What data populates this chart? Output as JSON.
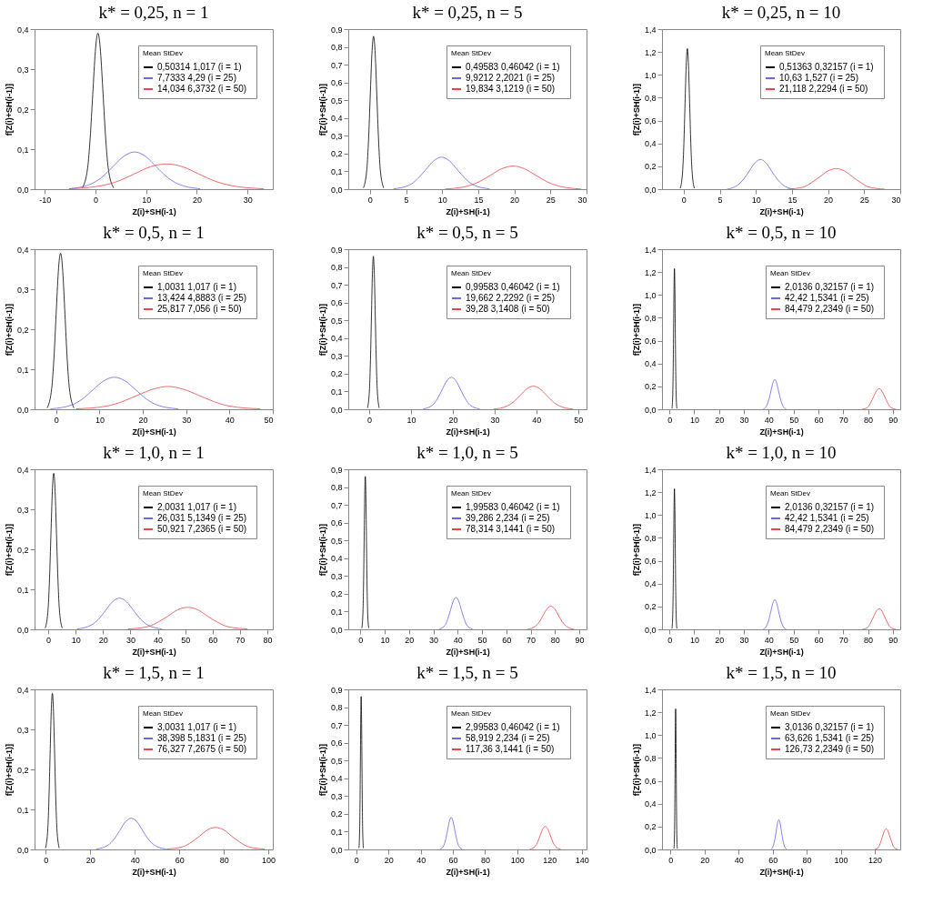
{
  "chart_data": [
    {
      "type": "line",
      "title": "k* = 0,25, n = 1",
      "xlabel": "Z(i)+SH(i-1)",
      "ylabel": "f[Z(i)+SH(i-1)]",
      "legend": "top right",
      "legend_title": "Mean StDev",
      "xlim": [
        -12,
        35
      ],
      "xticks": [
        -10,
        0,
        10,
        20,
        30
      ],
      "ylim": [
        0,
        0.4
      ],
      "yticks": [
        {
          "value": 0,
          "label": "0,0"
        },
        {
          "value": 0.1,
          "label": "0,1"
        },
        {
          "value": 0.2,
          "label": "0,2"
        },
        {
          "value": 0.3,
          "label": "0,3"
        },
        {
          "value": 0.4,
          "label": "0,4"
        }
      ],
      "series": [
        {
          "name": "0,50314  1,017  (i = 1)",
          "color": "#000000",
          "x": [
            -2.55,
            -1.53,
            -1.03,
            -0.52,
            -0.01,
            0.25,
            0.5,
            0.75,
            1.01,
            1.52,
            2.03,
            2.53,
            3.55
          ],
          "values": [
            0.004,
            0.053,
            0.127,
            0.237,
            0.344,
            0.378,
            0.39,
            0.378,
            0.344,
            0.237,
            0.127,
            0.053,
            0.004
          ]
        },
        {
          "name": "7,7333  4,29  (i = 25)",
          "color": "#6666ee",
          "x": [
            -5.14,
            -0.85,
            1.3,
            3.44,
            5.59,
            7.73,
            9.88,
            12.02,
            14.17,
            16.31,
            20.6
          ],
          "values": [
            0.001,
            0.013,
            0.03,
            0.056,
            0.082,
            0.093,
            0.082,
            0.056,
            0.03,
            0.013,
            0.001
          ]
        },
        {
          "name": "14,034  6,3732  (i = 50)",
          "color": "#ee4444",
          "x": [
            -5.08,
            1.29,
            4.48,
            7.66,
            10.85,
            14.03,
            17.22,
            20.4,
            23.59,
            26.77,
            33.14
          ],
          "values": [
            0.001,
            0.009,
            0.02,
            0.038,
            0.056,
            0.063,
            0.056,
            0.038,
            0.02,
            0.009,
            0.001
          ]
        }
      ]
    },
    {
      "type": "line",
      "title": "k* = 0,25, n = 5",
      "xlabel": "Z(i)+SH(i-1)",
      "ylabel": "f[Z(i)+SH(i-1)]",
      "legend": "top right",
      "legend_title": "Mean StDev",
      "xlim": [
        -3,
        30
      ],
      "xticks": [
        0,
        5,
        10,
        15,
        20,
        25,
        30
      ],
      "ylim": [
        0,
        0.9
      ],
      "yticks": [
        {
          "value": 0,
          "label": "0,0"
        },
        {
          "value": 0.1,
          "label": "0,1"
        },
        {
          "value": 0.2,
          "label": "0,2"
        },
        {
          "value": 0.3,
          "label": "0,3"
        },
        {
          "value": 0.4,
          "label": "0,4"
        },
        {
          "value": 0.5,
          "label": "0,5"
        },
        {
          "value": 0.6,
          "label": "0,6"
        },
        {
          "value": 0.7,
          "label": "0,7"
        },
        {
          "value": 0.8,
          "label": "0,8"
        },
        {
          "value": 0.9,
          "label": "0,9"
        }
      ],
      "series": [
        {
          "name": "0,49583  0,46042  (i = 1)",
          "color": "#000000",
          "x": [
            -0.88,
            -0.42,
            -0.19,
            0.04,
            0.27,
            0.5,
            0.73,
            0.96,
            1.19,
            1.42,
            1.88
          ],
          "values": [
            0.009,
            0.116,
            0.28,
            0.522,
            0.759,
            0.86,
            0.759,
            0.522,
            0.28,
            0.116,
            0.009
          ]
        },
        {
          "name": "9,9212  2,2021  (i = 25)",
          "color": "#6666ee",
          "x": [
            3.32,
            5.52,
            6.62,
            7.72,
            8.82,
            9.92,
            11.02,
            12.12,
            13.22,
            14.32,
            16.52
          ],
          "values": [
            0.002,
            0.024,
            0.059,
            0.109,
            0.159,
            0.18,
            0.159,
            0.109,
            0.059,
            0.024,
            0.002
          ]
        },
        {
          "name": "19,834  3,1219  (i = 50)",
          "color": "#ee4444",
          "x": [
            10.47,
            13.59,
            15.15,
            16.71,
            18.27,
            19.83,
            21.39,
            22.95,
            24.51,
            26.07,
            29.19
          ],
          "values": [
            0.001,
            0.018,
            0.042,
            0.079,
            0.115,
            0.13,
            0.115,
            0.079,
            0.042,
            0.018,
            0.001
          ]
        }
      ]
    },
    {
      "type": "line",
      "title": "k* = 0,25, n = 10",
      "xlabel": "Z(i)+SH(i-1)",
      "ylabel": "f[Z(i)+SH(i-1)]",
      "legend": "top right",
      "legend_title": "Mean StDev",
      "xlim": [
        -3,
        30
      ],
      "xticks": [
        0,
        5,
        10,
        15,
        20,
        25,
        30
      ],
      "ylim": [
        0,
        1.4
      ],
      "yticks": [
        {
          "value": 0,
          "label": "0,0"
        },
        {
          "value": 0.2,
          "label": "0,2"
        },
        {
          "value": 0.4,
          "label": "0,4"
        },
        {
          "value": 0.6,
          "label": "0,6"
        },
        {
          "value": 0.8,
          "label": "0,8"
        },
        {
          "value": 1,
          "label": "1,0"
        },
        {
          "value": 1.2,
          "label": "1,2"
        },
        {
          "value": 1.4,
          "label": "1,4"
        }
      ],
      "series": [
        {
          "name": "0,51363  0,32157  (i = 1)",
          "color": "#000000",
          "x": [
            -0.45,
            -0.13,
            0.03,
            0.19,
            0.35,
            0.51,
            0.67,
            0.83,
            0.99,
            1.15,
            1.47
          ],
          "values": [
            0.01,
            0.17,
            0.4,
            0.75,
            1.08,
            1.23,
            1.08,
            0.75,
            0.4,
            0.17,
            0.01
          ]
        },
        {
          "name": "10,63  1,527  (i = 25)",
          "color": "#6666ee",
          "x": [
            6.04,
            7.57,
            8.34,
            9.1,
            9.87,
            10.63,
            11.4,
            12.16,
            12.93,
            13.69,
            15.22
          ],
          "values": [
            0,
            0.04,
            0.09,
            0.16,
            0.23,
            0.26,
            0.23,
            0.16,
            0.09,
            0.04,
            0
          ]
        },
        {
          "name": "21,118  2,2294  (i = 50)",
          "color": "#ee4444",
          "x": [
            14.43,
            16.66,
            17.78,
            18.89,
            20.01,
            21.12,
            22.24,
            23.35,
            24.47,
            25.58,
            27.81
          ],
          "values": [
            0,
            0.02,
            0.06,
            0.11,
            0.16,
            0.18,
            0.16,
            0.11,
            0.06,
            0.02,
            0
          ]
        }
      ]
    },
    {
      "type": "line",
      "title": "k* = 0,5, n = 1",
      "xlabel": "Z(i)+SH(i-1)",
      "ylabel": "f[Z(i)+SH(i-1)]",
      "legend": "top right",
      "legend_title": "Mean StDev",
      "xlim": [
        -5,
        50
      ],
      "xticks": [
        0,
        10,
        20,
        30,
        40,
        50
      ],
      "ylim": [
        0,
        0.4
      ],
      "yticks": [
        {
          "value": 0,
          "label": "0,0"
        },
        {
          "value": 0.1,
          "label": "0,1"
        },
        {
          "value": 0.2,
          "label": "0,2"
        },
        {
          "value": 0.3,
          "label": "0,3"
        },
        {
          "value": 0.4,
          "label": "0,4"
        }
      ],
      "series": [
        {
          "name": "1,0031  1,017  (i = 1)",
          "color": "#000000",
          "x": [
            -2.05,
            -1.03,
            -0.53,
            -0.02,
            0.49,
            0.75,
            1,
            1.25,
            1.51,
            2.02,
            2.53,
            3.03,
            4.05
          ],
          "values": [
            0.004,
            0.053,
            0.127,
            0.237,
            0.344,
            0.378,
            0.39,
            0.378,
            0.344,
            0.237,
            0.127,
            0.053,
            0.004
          ]
        },
        {
          "name": "13,424  4,8883  (i = 25)",
          "color": "#6666ee",
          "x": [
            -1.25,
            3.64,
            6.09,
            8.53,
            10.98,
            13.42,
            15.87,
            18.31,
            20.76,
            23.2,
            28.09
          ],
          "values": [
            0.001,
            0.011,
            0.026,
            0.049,
            0.071,
            0.08,
            0.071,
            0.049,
            0.026,
            0.011,
            0.001
          ]
        },
        {
          "name": "25,817  7,056  (i = 50)",
          "color": "#ee4444",
          "x": [
            4.64,
            11.7,
            15.23,
            18.76,
            22.29,
            25.82,
            29.35,
            32.88,
            36.41,
            39.94,
            47
          ],
          "values": [
            0.001,
            0.008,
            0.019,
            0.035,
            0.05,
            0.057,
            0.05,
            0.035,
            0.019,
            0.008,
            0.001
          ]
        }
      ]
    },
    {
      "type": "line",
      "title": "k* = 0,5, n = 5",
      "xlabel": "Z(i)+SH(i-1)",
      "ylabel": "f[Z(i)+SH(i-1)]",
      "legend": "top right",
      "legend_title": "Mean StDev",
      "xlim": [
        -5,
        52
      ],
      "xticks": [
        0,
        10,
        20,
        30,
        40,
        50
      ],
      "ylim": [
        0,
        0.9
      ],
      "yticks": [
        {
          "value": 0,
          "label": "0,0"
        },
        {
          "value": 0.1,
          "label": "0,1"
        },
        {
          "value": 0.2,
          "label": "0,2"
        },
        {
          "value": 0.3,
          "label": "0,3"
        },
        {
          "value": 0.4,
          "label": "0,4"
        },
        {
          "value": 0.5,
          "label": "0,5"
        },
        {
          "value": 0.6,
          "label": "0,6"
        },
        {
          "value": 0.7,
          "label": "0,7"
        },
        {
          "value": 0.8,
          "label": "0,8"
        },
        {
          "value": 0.9,
          "label": "0,9"
        }
      ],
      "series": [
        {
          "name": "0,99583  0,46042  (i = 1)",
          "color": "#000000",
          "x": [
            -0.38,
            0.08,
            0.31,
            0.54,
            0.77,
            1,
            1.23,
            1.46,
            1.69,
            1.92,
            2.38
          ],
          "values": [
            0.009,
            0.116,
            0.28,
            0.522,
            0.759,
            0.86,
            0.759,
            0.522,
            0.28,
            0.116,
            0.009
          ]
        },
        {
          "name": "19,662  2,2292  (i = 25)",
          "color": "#6666ee",
          "x": [
            12.97,
            15.2,
            16.32,
            17.43,
            18.55,
            19.66,
            20.78,
            21.89,
            23.01,
            24.12,
            26.35
          ],
          "values": [
            0.002,
            0.024,
            0.059,
            0.109,
            0.159,
            0.18,
            0.159,
            0.109,
            0.059,
            0.024,
            0.002
          ]
        },
        {
          "name": "39,28  3,1408  (i = 50)",
          "color": "#ee4444",
          "x": [
            29.86,
            33,
            34.57,
            36.14,
            37.71,
            39.28,
            40.85,
            42.42,
            43.99,
            45.56,
            48.7
          ],
          "values": [
            0.001,
            0.018,
            0.042,
            0.079,
            0.115,
            0.13,
            0.115,
            0.079,
            0.042,
            0.018,
            0.001
          ]
        }
      ]
    },
    {
      "type": "line",
      "title": "k* = 0,5, n = 10",
      "xlabel": "Z(i)+SH(i-1)",
      "ylabel": "f[Z(i)+SH(i-1)]",
      "legend": "top right",
      "legend_title": "Mean StDev",
      "xlim": [
        -3,
        93
      ],
      "xticks": [
        0,
        10,
        20,
        30,
        40,
        50,
        60,
        70,
        80,
        90
      ],
      "ylim": [
        0,
        1.4
      ],
      "yticks": [
        {
          "value": 0,
          "label": "0,0"
        },
        {
          "value": 0.2,
          "label": "0,2"
        },
        {
          "value": 0.4,
          "label": "0,4"
        },
        {
          "value": 0.6,
          "label": "0,6"
        },
        {
          "value": 0.8,
          "label": "0,8"
        },
        {
          "value": 1,
          "label": "1,0"
        },
        {
          "value": 1.2,
          "label": "1,2"
        },
        {
          "value": 1.4,
          "label": "1,4"
        }
      ],
      "series": [
        {
          "name": "2,0136  0,32157  (i = 1)",
          "color": "#000000",
          "x": [
            1.05,
            1.37,
            1.53,
            1.69,
            1.85,
            2.01,
            2.17,
            2.33,
            2.49,
            2.65,
            2.97
          ],
          "values": [
            0.01,
            0.17,
            0.4,
            0.75,
            1.08,
            1.23,
            1.08,
            0.75,
            0.4,
            0.17,
            0.01
          ]
        },
        {
          "name": "42,42  1,5341  (i = 25)",
          "color": "#6666ee",
          "x": [
            37.83,
            39.36,
            40.13,
            40.89,
            41.66,
            42.42,
            43.19,
            43.95,
            44.72,
            45.48,
            47.01
          ],
          "values": [
            0,
            0.04,
            0.09,
            0.16,
            0.23,
            0.26,
            0.23,
            0.16,
            0.09,
            0.04,
            0
          ]
        },
        {
          "name": "84,479  2,2349  (i = 50)",
          "color": "#ee4444",
          "x": [
            77.79,
            80.02,
            81.14,
            82.25,
            83.37,
            84.48,
            85.6,
            86.71,
            87.83,
            88.94,
            91.17
          ],
          "values": [
            0,
            0.02,
            0.06,
            0.11,
            0.16,
            0.18,
            0.16,
            0.11,
            0.06,
            0.02,
            0
          ]
        }
      ]
    },
    {
      "type": "line",
      "title": "k* = 1,0, n = 1",
      "xlabel": "Z(i)+SH(i-1)",
      "ylabel": "f[Z(i)+SH(i-1)]",
      "legend": "top right",
      "legend_title": "Mean StDev",
      "xlim": [
        -5,
        82
      ],
      "xticks": [
        0,
        10,
        20,
        30,
        40,
        50,
        60,
        70,
        80
      ],
      "ylim": [
        0,
        0.4
      ],
      "yticks": [
        {
          "value": 0,
          "label": "0,0"
        },
        {
          "value": 0.1,
          "label": "0,1"
        },
        {
          "value": 0.2,
          "label": "0,2"
        },
        {
          "value": 0.3,
          "label": "0,3"
        },
        {
          "value": 0.4,
          "label": "0,4"
        }
      ],
      "series": [
        {
          "name": "2,0031  1,017  (i = 1)",
          "color": "#000000",
          "x": [
            -1.05,
            -0.03,
            0.47,
            0.98,
            1.49,
            1.75,
            2,
            2.25,
            2.51,
            3.02,
            3.53,
            4.03,
            5.05
          ],
          "values": [
            0.004,
            0.053,
            0.127,
            0.237,
            0.344,
            0.378,
            0.39,
            0.378,
            0.344,
            0.237,
            0.127,
            0.053,
            0.004
          ]
        },
        {
          "name": "26,031  5,1349  (i = 25)",
          "color": "#6666ee",
          "x": [
            10.64,
            15.77,
            18.33,
            20.9,
            23.46,
            26.03,
            28.6,
            31.16,
            33.73,
            36.29,
            41.42
          ],
          "values": [
            0.001,
            0.011,
            0.025,
            0.047,
            0.069,
            0.078,
            0.069,
            0.047,
            0.025,
            0.011,
            0.001
          ]
        },
        {
          "name": "50,921  7,2365  (i = 50)",
          "color": "#ee4444",
          "x": [
            29.2,
            36.44,
            40.06,
            43.68,
            47.3,
            50.92,
            54.54,
            58.16,
            61.78,
            65.4,
            72.64
          ],
          "values": [
            0.001,
            0.007,
            0.018,
            0.033,
            0.049,
            0.055,
            0.049,
            0.033,
            0.018,
            0.007,
            0.001
          ]
        }
      ]
    },
    {
      "type": "line",
      "title": "k* = 1,0, n = 5",
      "xlabel": "Z(i)+SH(i-1)",
      "ylabel": "f[Z(i)+SH(i-1)]",
      "legend": "top right",
      "legend_title": "Mean StDev",
      "xlim": [
        -5,
        93
      ],
      "xticks": [
        0,
        10,
        20,
        30,
        40,
        50,
        60,
        70,
        80,
        90
      ],
      "ylim": [
        0,
        0.9
      ],
      "yticks": [
        {
          "value": 0,
          "label": "0,0"
        },
        {
          "value": 0.1,
          "label": "0,1"
        },
        {
          "value": 0.2,
          "label": "0,2"
        },
        {
          "value": 0.3,
          "label": "0,3"
        },
        {
          "value": 0.4,
          "label": "0,4"
        },
        {
          "value": 0.5,
          "label": "0,5"
        },
        {
          "value": 0.6,
          "label": "0,6"
        },
        {
          "value": 0.7,
          "label": "0,7"
        },
        {
          "value": 0.8,
          "label": "0,8"
        },
        {
          "value": 0.9,
          "label": "0,9"
        }
      ],
      "series": [
        {
          "name": "1,99583  0,46042  (i = 1)",
          "color": "#000000",
          "x": [
            0.62,
            1.08,
            1.31,
            1.54,
            1.77,
            2,
            2.23,
            2.46,
            2.69,
            2.92,
            3.38
          ],
          "values": [
            0.009,
            0.116,
            0.28,
            0.522,
            0.759,
            0.86,
            0.759,
            0.522,
            0.28,
            0.116,
            0.009
          ]
        },
        {
          "name": "39,286  2,234  (i = 25)",
          "color": "#6666ee",
          "x": [
            32.6,
            34.83,
            35.95,
            37.06,
            38.18,
            39.29,
            40.41,
            41.52,
            42.64,
            43.75,
            45.98
          ],
          "values": [
            0.002,
            0.024,
            0.059,
            0.109,
            0.159,
            0.18,
            0.159,
            0.109,
            0.059,
            0.024,
            0.002
          ]
        },
        {
          "name": "78,314  3,1441  (i = 50)",
          "color": "#ee4444",
          "x": [
            68.89,
            72.03,
            73.6,
            75.17,
            76.74,
            78.31,
            79.88,
            81.45,
            83.02,
            84.59,
            87.73
          ],
          "values": [
            0.001,
            0.018,
            0.042,
            0.079,
            0.115,
            0.13,
            0.115,
            0.079,
            0.042,
            0.018,
            0.001
          ]
        }
      ]
    },
    {
      "type": "line",
      "title": "k* = 1,0, n = 10",
      "xlabel": "Z(i)+SH(i-1)",
      "ylabel": "f[Z(i)+SH(i-1)]",
      "legend": "top right",
      "legend_title": "Mean StDev",
      "xlim": [
        -3,
        93
      ],
      "xticks": [
        0,
        10,
        20,
        30,
        40,
        50,
        60,
        70,
        80,
        90
      ],
      "ylim": [
        0,
        1.4
      ],
      "yticks": [
        {
          "value": 0,
          "label": "0,0"
        },
        {
          "value": 0.2,
          "label": "0,2"
        },
        {
          "value": 0.4,
          "label": "0,4"
        },
        {
          "value": 0.6,
          "label": "0,6"
        },
        {
          "value": 0.8,
          "label": "0,8"
        },
        {
          "value": 1,
          "label": "1,0"
        },
        {
          "value": 1.2,
          "label": "1,2"
        },
        {
          "value": 1.4,
          "label": "1,4"
        }
      ],
      "series": [
        {
          "name": "2,0136  0,32157  (i = 1)",
          "color": "#000000",
          "x": [
            1.05,
            1.37,
            1.53,
            1.69,
            1.85,
            2.01,
            2.17,
            2.33,
            2.49,
            2.65,
            2.97
          ],
          "values": [
            0.01,
            0.17,
            0.4,
            0.75,
            1.08,
            1.23,
            1.08,
            0.75,
            0.4,
            0.17,
            0.01
          ]
        },
        {
          "name": "42,42  1,5341  (i = 25)",
          "color": "#6666ee",
          "x": [
            37.83,
            39.36,
            40.13,
            40.89,
            41.66,
            42.42,
            43.19,
            43.95,
            44.72,
            45.48,
            47.01
          ],
          "values": [
            0,
            0.04,
            0.09,
            0.16,
            0.23,
            0.26,
            0.23,
            0.16,
            0.09,
            0.04,
            0
          ]
        },
        {
          "name": "84,479  2,2349  (i = 50)",
          "color": "#ee4444",
          "x": [
            77.79,
            80.02,
            81.14,
            82.25,
            83.37,
            84.48,
            85.6,
            86.71,
            87.83,
            88.94,
            91.17
          ],
          "values": [
            0,
            0.02,
            0.06,
            0.11,
            0.16,
            0.18,
            0.16,
            0.11,
            0.06,
            0.02,
            0
          ]
        }
      ]
    },
    {
      "type": "line",
      "title": "k* = 1,5, n = 1",
      "xlabel": "Z(i)+SH(i-1)",
      "ylabel": "f[Z(i)+SH(i-1)]",
      "legend": "top right",
      "legend_title": "Mean StDev",
      "xlim": [
        -5,
        102
      ],
      "xticks": [
        0,
        20,
        40,
        60,
        80,
        100
      ],
      "ylim": [
        0,
        0.4
      ],
      "yticks": [
        {
          "value": 0,
          "label": "0,0"
        },
        {
          "value": 0.1,
          "label": "0,1"
        },
        {
          "value": 0.2,
          "label": "0,2"
        },
        {
          "value": 0.3,
          "label": "0,3"
        },
        {
          "value": 0.4,
          "label": "0,4"
        }
      ],
      "series": [
        {
          "name": "3,0031  1,017  (i = 1)",
          "color": "#000000",
          "x": [
            -0.05,
            0.97,
            1.47,
            1.98,
            2.49,
            2.75,
            3,
            3.25,
            3.51,
            4.02,
            4.53,
            5.03,
            6.05
          ],
          "values": [
            0.004,
            0.053,
            0.127,
            0.237,
            0.344,
            0.378,
            0.39,
            0.378,
            0.344,
            0.237,
            0.127,
            0.053,
            0.004
          ]
        },
        {
          "name": "38,398  5,1831  (i = 25)",
          "color": "#6666ee",
          "x": [
            22.86,
            28.04,
            30.63,
            33.22,
            35.81,
            38.4,
            40.99,
            43.58,
            46.17,
            48.76,
            53.94
          ],
          "values": [
            0.001,
            0.011,
            0.025,
            0.047,
            0.069,
            0.078,
            0.069,
            0.047,
            0.025,
            0.011,
            0.001
          ]
        },
        {
          "name": "76,327  7,2675  (i = 50)",
          "color": "#ee4444",
          "x": [
            54.52,
            61.79,
            65.43,
            69.06,
            72.7,
            76.33,
            79.97,
            83.6,
            87.24,
            90.87,
            98.14
          ],
          "values": [
            0.001,
            0.007,
            0.018,
            0.033,
            0.049,
            0.055,
            0.049,
            0.033,
            0.018,
            0.007,
            0.001
          ]
        }
      ]
    },
    {
      "type": "line",
      "title": "k* = 1,5, n = 5",
      "xlabel": "Z(i)+SH(i-1)",
      "ylabel": "f[Z(i)+SH(i-1)]",
      "legend": "top right",
      "legend_title": "Mean StDev",
      "xlim": [
        -5,
        143
      ],
      "xticks": [
        0,
        20,
        40,
        60,
        80,
        100,
        120,
        140
      ],
      "ylim": [
        0,
        0.9
      ],
      "yticks": [
        {
          "value": 0,
          "label": "0,0"
        },
        {
          "value": 0.1,
          "label": "0,1"
        },
        {
          "value": 0.2,
          "label": "0,2"
        },
        {
          "value": 0.3,
          "label": "0,3"
        },
        {
          "value": 0.4,
          "label": "0,4"
        },
        {
          "value": 0.5,
          "label": "0,5"
        },
        {
          "value": 0.6,
          "label": "0,6"
        },
        {
          "value": 0.7,
          "label": "0,7"
        },
        {
          "value": 0.8,
          "label": "0,8"
        },
        {
          "value": 0.9,
          "label": "0,9"
        }
      ],
      "series": [
        {
          "name": "2,99583  0,46042  (i = 1)",
          "color": "#000000",
          "x": [
            1.62,
            2.08,
            2.31,
            2.54,
            2.77,
            3,
            3.23,
            3.46,
            3.69,
            3.92,
            4.38
          ],
          "values": [
            0.009,
            0.116,
            0.28,
            0.522,
            0.759,
            0.86,
            0.759,
            0.522,
            0.28,
            0.116,
            0.009
          ]
        },
        {
          "name": "58,919  2,234  (i = 25)",
          "color": "#6666ee",
          "x": [
            52.23,
            54.46,
            55.58,
            56.69,
            57.81,
            58.92,
            60.04,
            61.15,
            62.27,
            63.38,
            65.61
          ],
          "values": [
            0.002,
            0.024,
            0.059,
            0.109,
            0.159,
            0.18,
            0.159,
            0.109,
            0.059,
            0.024,
            0.002
          ]
        },
        {
          "name": "117,36  3,1441  (i = 50)",
          "color": "#ee4444",
          "x": [
            107.94,
            111.08,
            112.65,
            114.22,
            115.79,
            117.36,
            118.93,
            120.5,
            122.07,
            123.64,
            126.78
          ],
          "values": [
            0.001,
            0.018,
            0.042,
            0.079,
            0.115,
            0.13,
            0.115,
            0.079,
            0.042,
            0.018,
            0.001
          ]
        }
      ]
    },
    {
      "type": "line",
      "title": "k* = 1,5, n = 10",
      "xlabel": "Z(i)+SH(i-1)",
      "ylabel": "f[Z(i)+SH(i-1)]",
      "legend": "top right",
      "legend_title": "Mean StDev",
      "xlim": [
        -5,
        135
      ],
      "xticks": [
        0,
        20,
        40,
        60,
        80,
        100,
        120
      ],
      "ylim": [
        0,
        1.4
      ],
      "yticks": [
        {
          "value": 0,
          "label": "0,0"
        },
        {
          "value": 0.2,
          "label": "0,2"
        },
        {
          "value": 0.4,
          "label": "0,4"
        },
        {
          "value": 0.6,
          "label": "0,6"
        },
        {
          "value": 0.8,
          "label": "0,8"
        },
        {
          "value": 1,
          "label": "1,0"
        },
        {
          "value": 1.2,
          "label": "1,2"
        },
        {
          "value": 1.4,
          "label": "1,4"
        }
      ],
      "series": [
        {
          "name": "3,0136  0,32157  (i = 1)",
          "color": "#000000",
          "x": [
            2.05,
            2.37,
            2.53,
            2.69,
            2.85,
            3.01,
            3.17,
            3.33,
            3.49,
            3.65,
            3.97
          ],
          "values": [
            0.01,
            0.17,
            0.4,
            0.75,
            1.08,
            1.23,
            1.08,
            0.75,
            0.4,
            0.17,
            0.01
          ]
        },
        {
          "name": "63,626  1,5341  (i = 25)",
          "color": "#6666ee",
          "x": [
            59.04,
            60.57,
            61.34,
            62.1,
            62.87,
            63.63,
            64.4,
            65.16,
            65.93,
            66.69,
            68.22
          ],
          "values": [
            0,
            0.04,
            0.09,
            0.16,
            0.23,
            0.26,
            0.23,
            0.16,
            0.09,
            0.04,
            0
          ]
        },
        {
          "name": "126,73  2,2349  (i = 50)",
          "color": "#ee4444",
          "x": [
            120.04,
            122.27,
            123.39,
            124.5,
            125.62,
            126.73,
            127.85,
            128.96,
            130.08,
            131.19,
            133.42
          ],
          "values": [
            0,
            0.02,
            0.06,
            0.11,
            0.16,
            0.18,
            0.16,
            0.11,
            0.06,
            0.02,
            0
          ]
        }
      ]
    }
  ]
}
